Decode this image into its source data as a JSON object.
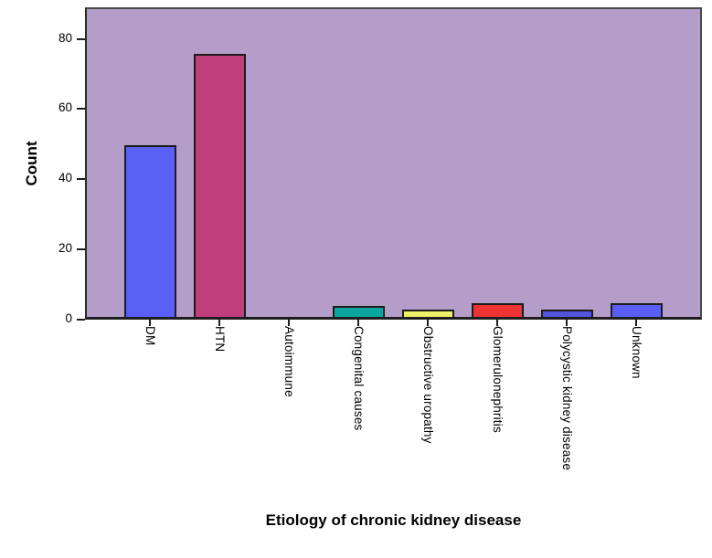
{
  "chart_data": {
    "type": "bar",
    "title": "",
    "xlabel": "Etiology of chronic kidney disease",
    "ylabel": "Count",
    "categories": [
      "DM",
      "HTN",
      "Autoimmune",
      "Congenital causes",
      "Obstructive uropathy",
      "Glomerulonephritis",
      "Polycystic kidney disease",
      "Unknown"
    ],
    "values": [
      49,
      75,
      0,
      3,
      2,
      4,
      2,
      4
    ],
    "bar_colors": [
      "#5a5ff5",
      "#c13e7d",
      "#5a5ff5",
      "#0ca49e",
      "#eef06a",
      "#ed3333",
      "#5254dc",
      "#5a5ef2"
    ],
    "yticks": [
      0,
      20,
      40,
      60,
      80
    ],
    "ylim": [
      0,
      89
    ],
    "grid": false,
    "legend": null,
    "colors": {
      "plot_background": "#b49dc8",
      "bar_border": "#1c1c1c",
      "axis": "#1e1e1e",
      "text": "#000000",
      "page_background": "#ffffff"
    }
  }
}
